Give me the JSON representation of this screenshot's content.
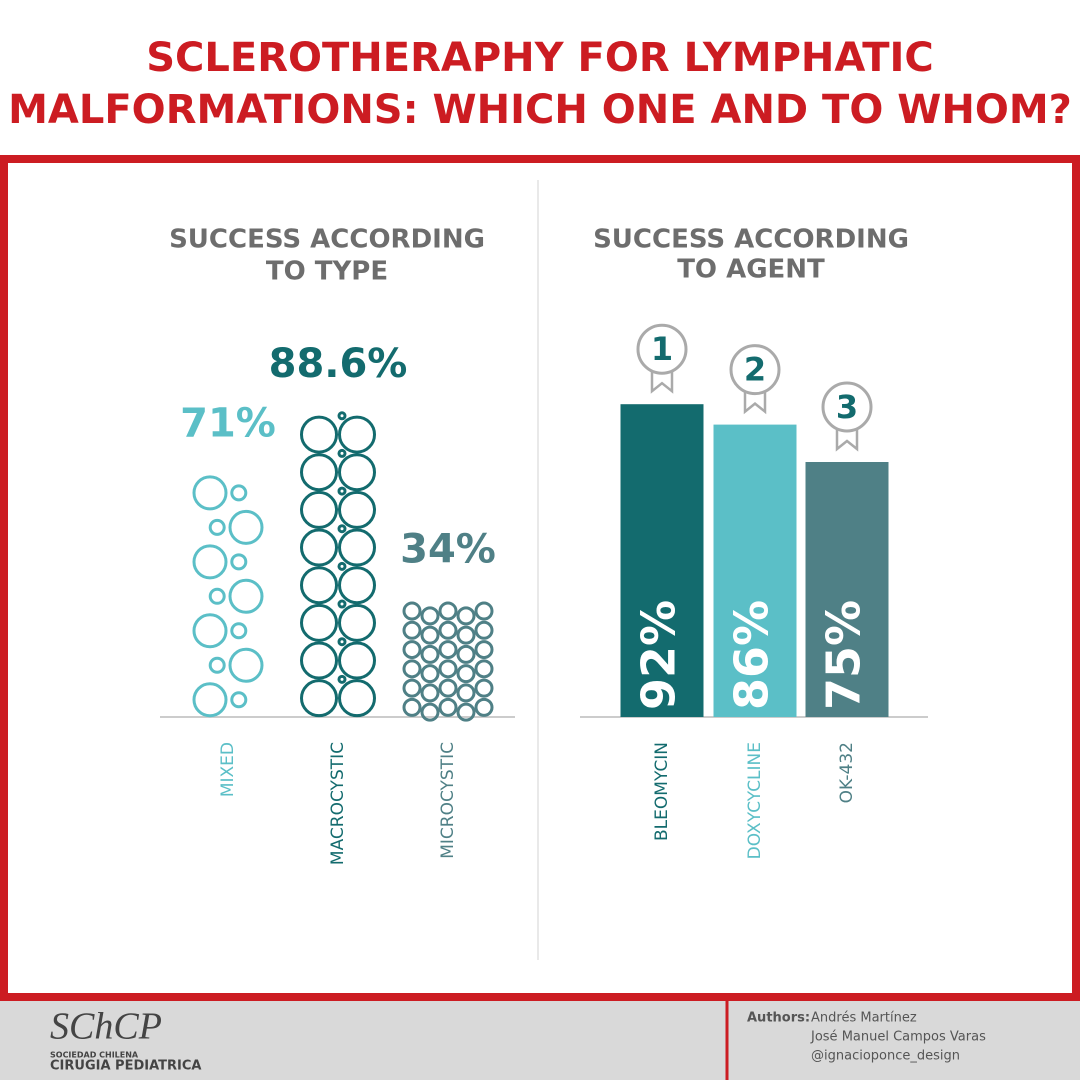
{
  "header": {
    "title_lines": [
      "SCLEROTHERAPHY FOR LYMPHATIC",
      "MALFORMATIONS: WHICH ONE AND TO WHOM?"
    ]
  },
  "chart_data": [
    {
      "type": "bubble-column",
      "title_lines": [
        "SUCCESS ACCORDING",
        "TO TYPE"
      ],
      "categories": [
        "MIXED",
        "MACROCYSTIC",
        "MICROCYSTIC"
      ],
      "values": [
        71,
        88.6,
        34
      ],
      "value_labels": [
        "71%",
        "88.6%",
        "34%"
      ],
      "colors": [
        "#5bbfc7",
        "#136b6e",
        "#4f8086"
      ]
    },
    {
      "type": "bar",
      "title_lines": [
        "SUCCESS ACCORDING",
        "TO AGENT"
      ],
      "categories": [
        "BLEOMYCIN",
        "DOXYCYCLINE",
        "OK-432"
      ],
      "values": [
        92,
        86,
        75
      ],
      "value_labels": [
        "92%",
        "86%",
        "75%"
      ],
      "ranks": [
        1,
        2,
        3
      ],
      "colors": [
        "#136b6e",
        "#5bbfc7",
        "#4f8086"
      ]
    }
  ],
  "footer": {
    "logo": "SChCP",
    "society_line1": "SOCIEDAD CHILENA",
    "society_line2": "CIRUGIA PEDIATRICA",
    "authors_label": "Authors:",
    "authors": [
      "Andrés Martínez",
      "José Manuel Campos Varas",
      "@ignacioponce_design"
    ]
  }
}
